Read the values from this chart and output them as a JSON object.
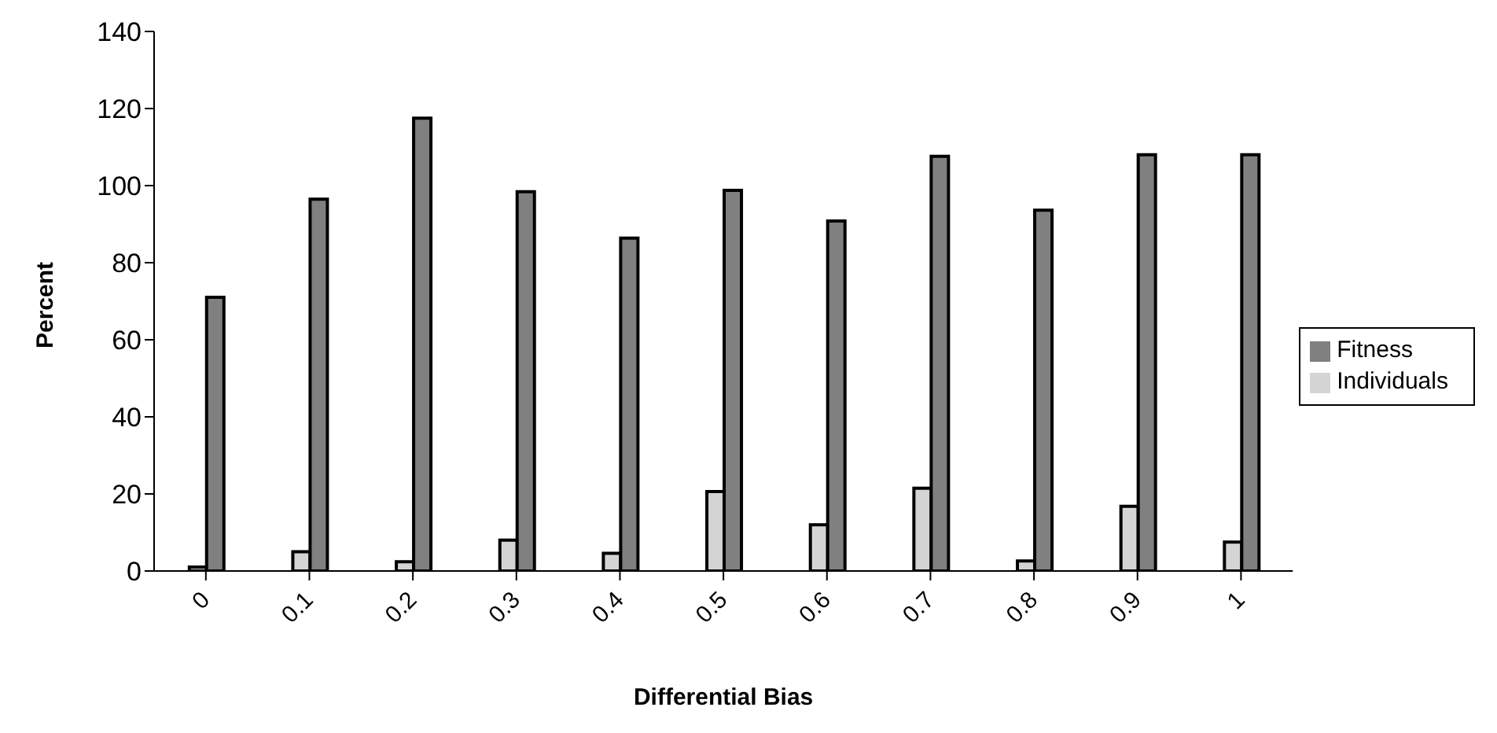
{
  "chart_data": {
    "type": "bar",
    "xlabel": "Differential Bias",
    "ylabel": "Percent",
    "categories": [
      "0",
      "0.1",
      "0.2",
      "0.3",
      "0.4",
      "0.5",
      "0.6",
      "0.7",
      "0.8",
      "0.9",
      "1"
    ],
    "series": [
      {
        "name": "Individuals",
        "color": "#d4d4d4",
        "values": [
          1,
          5,
          2.4,
          8,
          4.6,
          20.6,
          12,
          21.5,
          2.6,
          16.8,
          7.5
        ]
      },
      {
        "name": "Fitness",
        "color": "#808080",
        "values": [
          71,
          96.5,
          117.5,
          98.4,
          86.4,
          98.8,
          90.8,
          107.6,
          93.6,
          108,
          108
        ]
      }
    ],
    "ylim": [
      0,
      140
    ],
    "yticks": [
      0,
      20,
      40,
      60,
      80,
      100,
      120,
      140
    ],
    "grid": false,
    "legend": "right"
  }
}
